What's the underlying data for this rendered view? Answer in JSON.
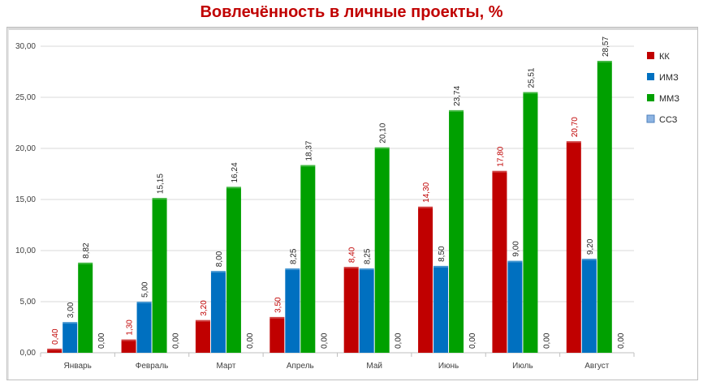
{
  "chart_data": {
    "type": "bar",
    "title": "Вовлечённость в личные проекты, %",
    "categories": [
      "Январь",
      "Февраль",
      "Март",
      "Апрель",
      "Май",
      "Июнь",
      "Июль",
      "Август"
    ],
    "series": [
      {
        "name": "КК",
        "color": "#c00000",
        "label_color": "#c00000",
        "values": [
          0.4,
          1.3,
          3.2,
          3.5,
          8.4,
          14.3,
          17.8,
          20.7
        ],
        "labels": [
          "0,40",
          "1,30",
          "3,20",
          "3,50",
          "8,40",
          "14,30",
          "17,80",
          "20,70"
        ]
      },
      {
        "name": "ИМЗ",
        "color": "#0070c0",
        "label_color": "#262626",
        "values": [
          3.0,
          5.0,
          8.0,
          8.25,
          8.25,
          8.5,
          9.0,
          9.2
        ],
        "labels": [
          "3,00",
          "5,00",
          "8,00",
          "8,25",
          "8,25",
          "8,50",
          "9,00",
          "9,20"
        ]
      },
      {
        "name": "ММЗ",
        "color": "#00a000",
        "label_color": "#262626",
        "values": [
          8.82,
          15.15,
          16.24,
          18.37,
          20.1,
          23.74,
          25.51,
          28.57
        ],
        "labels": [
          "8,82",
          "15,15",
          "16,24",
          "18,37",
          "20,10",
          "23,74",
          "25,51",
          "28,57"
        ]
      },
      {
        "name": "ССЗ",
        "color": "#8db4e2",
        "label_color": "#262626",
        "values": [
          0,
          0,
          0,
          0,
          0,
          0,
          0,
          0
        ],
        "labels": [
          "0,00",
          "0,00",
          "0,00",
          "0,00",
          "0,00",
          "0,00",
          "0,00",
          "0,00"
        ]
      }
    ],
    "ylim": [
      0,
      30
    ],
    "yticks": [
      0,
      5,
      10,
      15,
      20,
      25,
      30
    ],
    "ytick_labels": [
      "0,00",
      "5,00",
      "10,00",
      "15,00",
      "20,00",
      "25,00",
      "30,00"
    ],
    "grid": true,
    "legend_position": "right"
  }
}
